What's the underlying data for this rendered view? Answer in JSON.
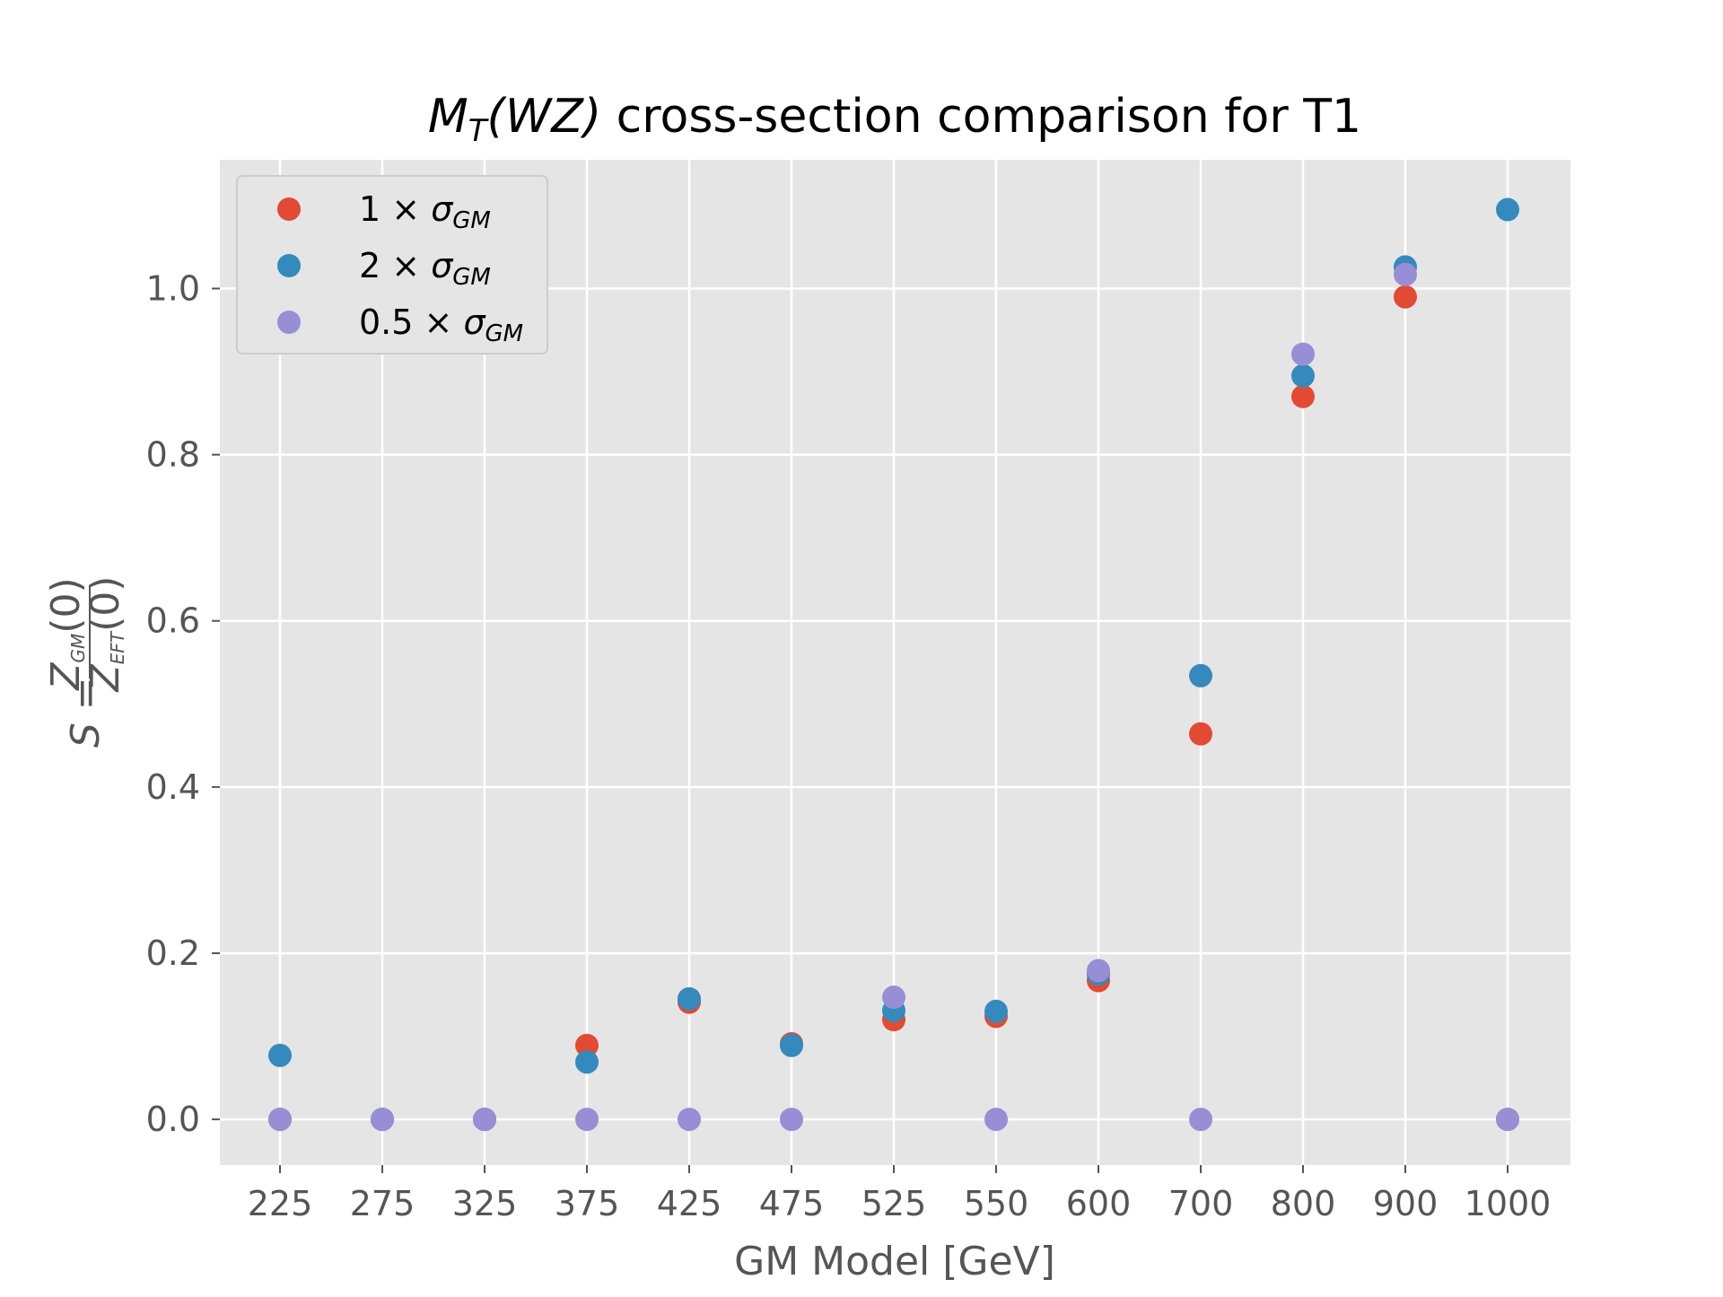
{
  "chart_data": {
    "type": "scatter",
    "title": {
      "pre_italic": "M",
      "pre_sub": "T",
      "mid_italic": "(WZ)",
      "post": " cross-section comparison for T1"
    },
    "xlabel": "GM Model [GeV]",
    "ylabel": {
      "prefix": "S = ",
      "num_main": "Z",
      "num_sub": "GM",
      "num_tail": "(0)",
      "den_main": "Z",
      "den_sub": "EFT",
      "den_tail": "(0)"
    },
    "categories": [
      "225",
      "275",
      "325",
      "375",
      "425",
      "475",
      "525",
      "550",
      "600",
      "700",
      "800",
      "900",
      "1000"
    ],
    "ylim": [
      -0.055,
      1.155
    ],
    "yticks": [
      0.0,
      0.2,
      0.4,
      0.6,
      0.8,
      1.0
    ],
    "ytick_labels": [
      "0.0",
      "0.2",
      "0.4",
      "0.6",
      "0.8",
      "1.0"
    ],
    "grid": true,
    "legend_position": "upper-left",
    "series": [
      {
        "legend_prefix": "1",
        "legend_symbol": "σ",
        "legend_sub": "GM",
        "color": "#E24A33",
        "values": [
          0.0,
          0.0,
          0.0,
          0.089,
          0.141,
          0.091,
          0.12,
          0.124,
          0.167,
          0.464,
          0.87,
          0.99,
          0.0
        ]
      },
      {
        "legend_prefix": "2",
        "legend_symbol": "σ",
        "legend_sub": "GM",
        "color": "#348ABD",
        "values": [
          0.077,
          0.0,
          0.0,
          0.069,
          0.145,
          0.089,
          0.131,
          0.13,
          0.175,
          0.534,
          0.895,
          1.026,
          1.095
        ]
      },
      {
        "legend_prefix": "0.5",
        "legend_symbol": "σ",
        "legend_sub": "GM",
        "color": "#988ED5",
        "values": [
          0.0,
          0.0,
          0.0,
          0.0,
          0.0,
          0.0,
          0.147,
          0.0,
          0.179,
          0.0,
          0.921,
          1.017,
          0.0
        ]
      }
    ],
    "background_color": "#E5E5E5",
    "grid_color": "#FFFFFF"
  }
}
